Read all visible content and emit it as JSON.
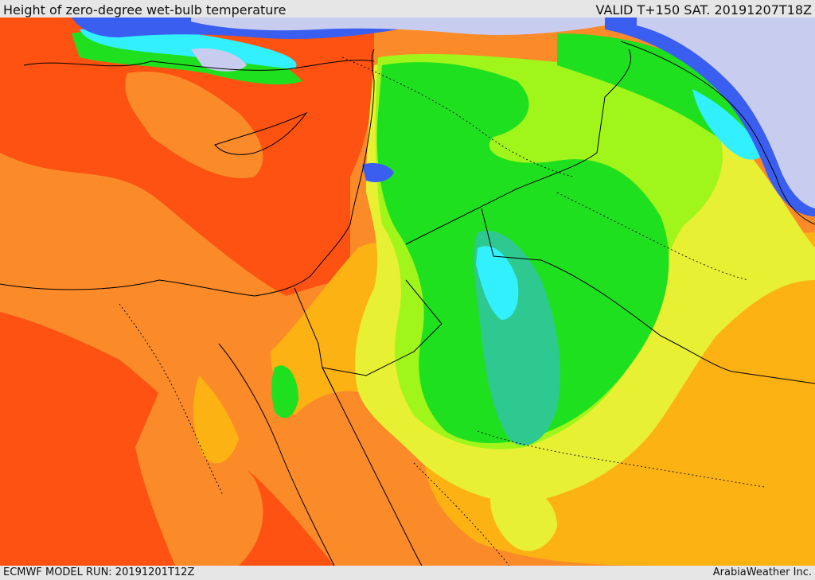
{
  "header": {
    "title": "Height of zero-degree wet-bulb temperature",
    "valid": "VALID T+150 SAT. 20191207T18Z"
  },
  "footer": {
    "model_run": "ECMWF MODEL RUN: 20191201T12Z",
    "credit": "ArabiaWeather Inc."
  },
  "colors": {
    "very_high": "#fd5211",
    "high": "#fb8a29",
    "mid_high": "#fdb214",
    "mid": "#e8f034",
    "mid_low": "#a0f51a",
    "low": "#1fe01f",
    "lower": "#2ec990",
    "cyan": "#33f0ff",
    "blue": "#3a5ff0",
    "lavender": "#c8cdf0",
    "border_line": "#000000"
  }
}
